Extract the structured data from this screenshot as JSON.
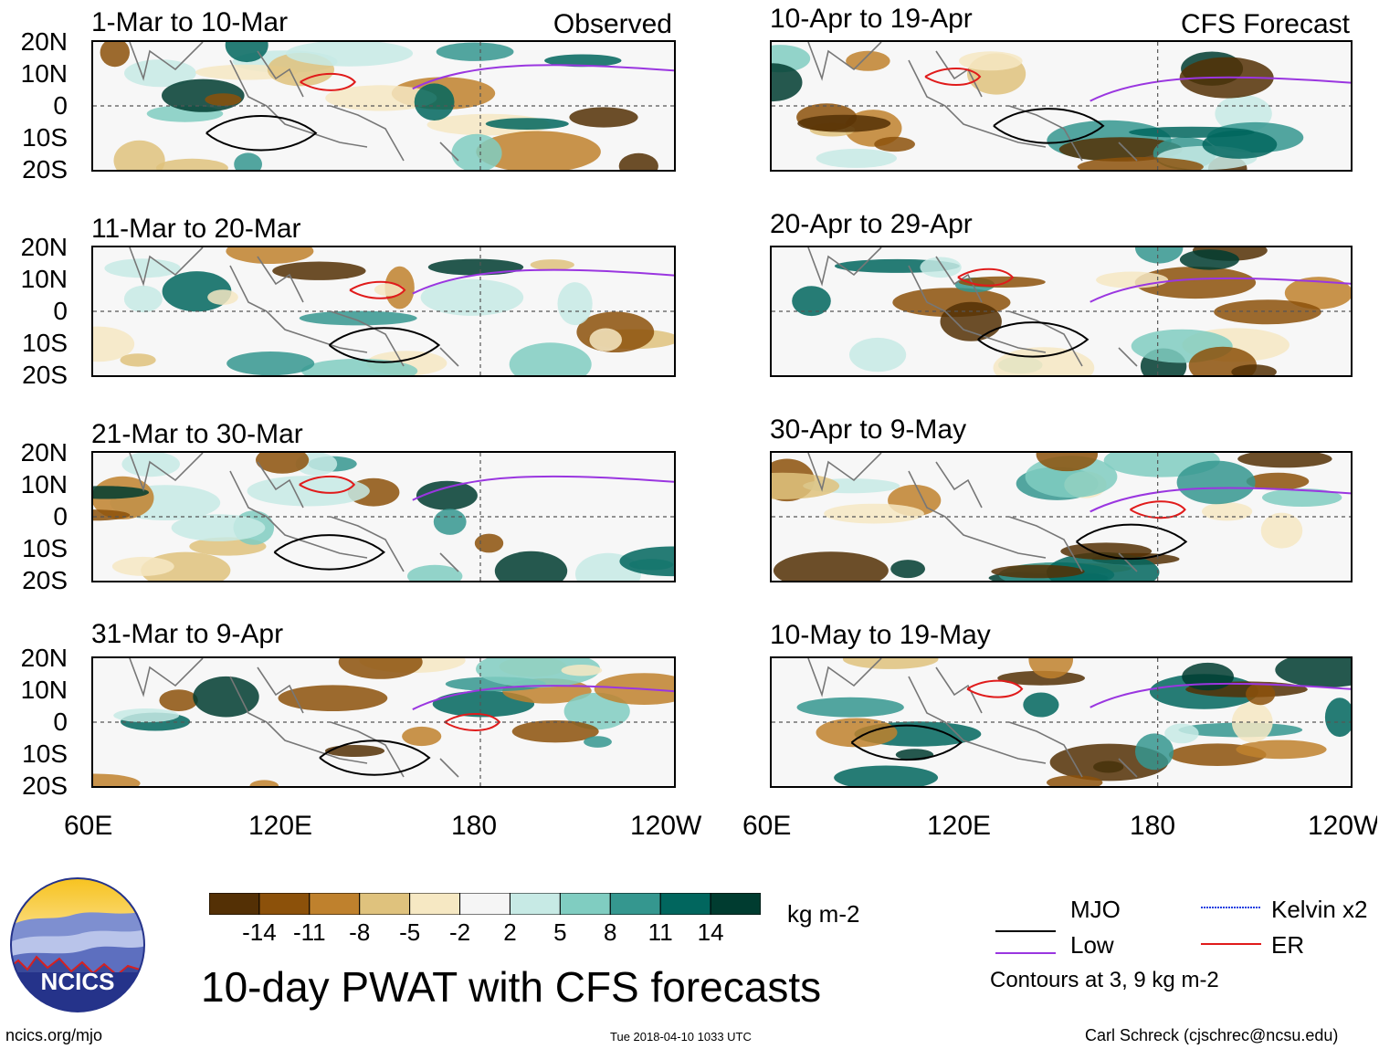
{
  "figure": {
    "main_title": "10-day PWAT with CFS forecasts",
    "units": "kg m-2",
    "logo_text": "NCICS",
    "website": "ncics.org/mjo",
    "timestamp": "Tue 2018-04-10 1033 UTC",
    "author": "Carl Schreck (cjschrec@ncsu.edu)",
    "observed_tag": "Observed",
    "forecast_tag": "CFS Forecast",
    "contour_note": "Contours at 3, 9 kg m-2"
  },
  "chart_data": {
    "type": "heatmap",
    "variable": "Precipitable water anomaly (10-day mean)",
    "lat_ticks": [
      "20N",
      "10N",
      "0",
      "10S",
      "20S"
    ],
    "lon_ticks": [
      "60E",
      "120E",
      "180",
      "120W"
    ],
    "lat_range": [
      -20,
      20
    ],
    "lon_range": [
      60,
      240
    ],
    "panels_observed": [
      {
        "title": "1-Mar to 10-Mar"
      },
      {
        "title": "11-Mar to 20-Mar"
      },
      {
        "title": "21-Mar to 30-Mar"
      },
      {
        "title": "31-Mar to 9-Apr"
      }
    ],
    "panels_forecast": [
      {
        "title": "10-Apr to 19-Apr"
      },
      {
        "title": "20-Apr to 29-Apr"
      },
      {
        "title": "30-Apr to 9-May"
      },
      {
        "title": "10-May to 19-May"
      }
    ],
    "colorbar": {
      "labels": [
        "-14",
        "-11",
        "-8",
        "-5",
        "-2",
        "2",
        "5",
        "8",
        "11",
        "14"
      ],
      "colors": [
        "#543005",
        "#8c510a",
        "#bf812d",
        "#dfc27d",
        "#f6e8c3",
        "#f5f5f5",
        "#c7eae5",
        "#80cdc1",
        "#35978f",
        "#01665e",
        "#003c30"
      ]
    },
    "legend": [
      {
        "label": "MJO",
        "color": "#000000"
      },
      {
        "label": "Kelvin x2",
        "color": "#1f3fe0"
      },
      {
        "label": "Low",
        "color": "#9a36e0"
      },
      {
        "label": "ER",
        "color": "#e01b1b"
      }
    ]
  }
}
